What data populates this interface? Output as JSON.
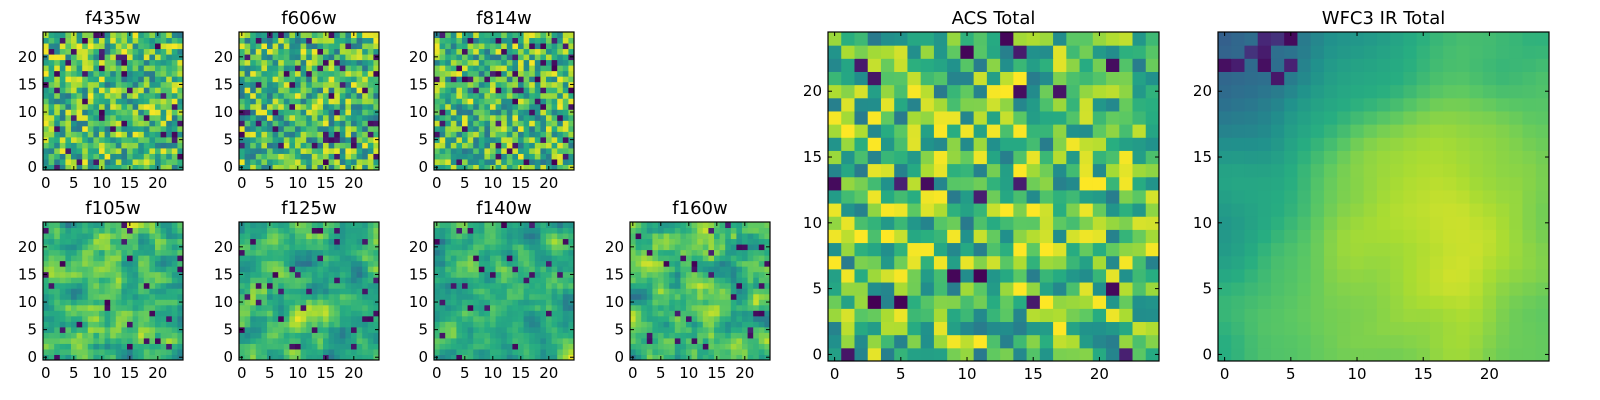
{
  "chart_data": [
    {
      "type": "heatmap",
      "title": "f435w",
      "seed": 11,
      "smooth": 0,
      "dark": 0.07,
      "bias": 0.15,
      "xticks": [
        "0",
        "5",
        "10",
        "15",
        "20"
      ],
      "yticks": [
        "0",
        "5",
        "10",
        "15",
        "20"
      ],
      "xlim": [
        0,
        25
      ],
      "ylim": [
        0,
        25
      ],
      "grid_size": 25
    },
    {
      "type": "heatmap",
      "title": "f606w",
      "seed": 22,
      "smooth": 0,
      "dark": 0.07,
      "bias": 0.12,
      "xticks": [
        "0",
        "5",
        "10",
        "15",
        "20"
      ],
      "yticks": [
        "0",
        "5",
        "10",
        "15",
        "20"
      ],
      "xlim": [
        0,
        25
      ],
      "ylim": [
        0,
        25
      ],
      "grid_size": 25
    },
    {
      "type": "heatmap",
      "title": "f814w",
      "seed": 33,
      "smooth": 0,
      "dark": 0.07,
      "bias": 0.14,
      "xticks": [
        "0",
        "5",
        "10",
        "15",
        "20"
      ],
      "yticks": [
        "0",
        "5",
        "10",
        "15",
        "20"
      ],
      "xlim": [
        0,
        25
      ],
      "ylim": [
        0,
        25
      ],
      "grid_size": 25
    },
    {
      "type": "heatmap",
      "title": "f105w",
      "seed": 44,
      "smooth": 1,
      "dark": 0.05,
      "bias": 0.05,
      "xticks": [
        "0",
        "5",
        "10",
        "15",
        "20"
      ],
      "yticks": [
        "0",
        "5",
        "10",
        "15",
        "20"
      ],
      "xlim": [
        0,
        25
      ],
      "ylim": [
        0,
        25
      ],
      "grid_size": 25
    },
    {
      "type": "heatmap",
      "title": "f125w",
      "seed": 55,
      "smooth": 1,
      "dark": 0.05,
      "bias": 0.08,
      "xticks": [
        "0",
        "5",
        "10",
        "15",
        "20"
      ],
      "yticks": [
        "0",
        "5",
        "10",
        "15",
        "20"
      ],
      "xlim": [
        0,
        25
      ],
      "ylim": [
        0,
        25
      ],
      "grid_size": 25
    },
    {
      "type": "heatmap",
      "title": "f140w",
      "seed": 66,
      "smooth": 1,
      "dark": 0.05,
      "bias": 0.08,
      "xticks": [
        "0",
        "5",
        "10",
        "15",
        "20"
      ],
      "yticks": [
        "0",
        "5",
        "10",
        "15",
        "20"
      ],
      "xlim": [
        0,
        25
      ],
      "ylim": [
        0,
        25
      ],
      "grid_size": 25
    },
    {
      "type": "heatmap",
      "title": "f160w",
      "seed": 77,
      "smooth": 1,
      "dark": 0.05,
      "bias": 0.08,
      "xticks": [
        "0",
        "5",
        "10",
        "15",
        "20"
      ],
      "yticks": [
        "0",
        "5",
        "10",
        "15",
        "20"
      ],
      "xlim": [
        0,
        25
      ],
      "ylim": [
        0,
        25
      ],
      "grid_size": 25
    },
    {
      "type": "heatmap",
      "title": "ACS Total",
      "seed": 88,
      "smooth": 0,
      "dark": 0.04,
      "bias": 0.2,
      "xticks": [
        "0",
        "5",
        "10",
        "15",
        "20"
      ],
      "yticks": [
        "0",
        "5",
        "10",
        "15",
        "20"
      ],
      "xlim": [
        0,
        25
      ],
      "ylim": [
        0,
        25
      ],
      "grid_size": 25
    },
    {
      "type": "heatmap",
      "title": "WFC3 IR Total",
      "seed": 99,
      "smooth": 3,
      "dark": 0.0,
      "bias": 0.15,
      "gradient": true,
      "xticks": [
        "0",
        "5",
        "10",
        "15",
        "20"
      ],
      "yticks": [
        "0",
        "5",
        "10",
        "15",
        "20"
      ],
      "xlim": [
        0,
        25
      ],
      "ylim": [
        0,
        25
      ],
      "grid_size": 25
    }
  ]
}
